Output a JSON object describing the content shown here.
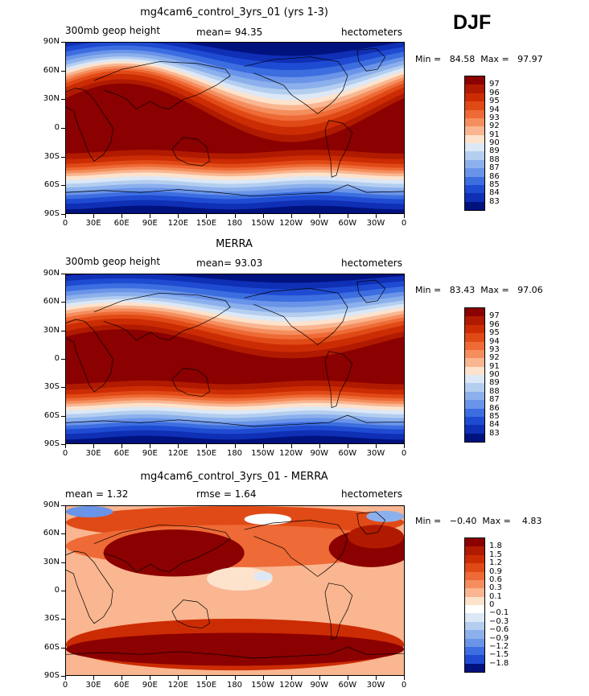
{
  "season": "DJF",
  "panels": [
    {
      "title": "mg4cam6_control_3yrs_01 (yrs 1-3)",
      "left_label": "300mb geop height",
      "center_label": "mean=   94.35",
      "right_label": "hectometers",
      "minmax": "Min =   84.58  Max =   97.97",
      "field": "model"
    },
    {
      "title": "MERRA",
      "left_label": "300mb geop height",
      "center_label": "mean=   93.03",
      "right_label": "hectometers",
      "minmax": "Min =   83.43  Max =   97.06",
      "field": "obs"
    },
    {
      "title": "mg4cam6_control_3yrs_01 - MERRA",
      "left_label": "mean =     1.32",
      "center_label": "rmse =     1.64",
      "right_label": "hectometers",
      "minmax": "Min =   −0.40  Max =    4.83",
      "field": "diff"
    }
  ],
  "lat_labels": [
    "90N",
    "60N",
    "30N",
    "0",
    "30S",
    "60S",
    "90S"
  ],
  "lon_labels": [
    "0",
    "30E",
    "60E",
    "90E",
    "120E",
    "150E",
    "180",
    "150W",
    "120W",
    "90W",
    "60W",
    "30W",
    "0"
  ],
  "colorbar_abs": {
    "labels": [
      "97",
      "96",
      "95",
      "94",
      "93",
      "92",
      "91",
      "90",
      "89",
      "88",
      "87",
      "86",
      "85",
      "84",
      "83"
    ],
    "colors": [
      "#8b0000",
      "#b01a00",
      "#cc2c04",
      "#e04a16",
      "#ee6a36",
      "#f58e5e",
      "#f9b690",
      "#fde2cc",
      "#dce8f6",
      "#b4cef0",
      "#8cb0ec",
      "#6a94e8",
      "#3d6ee0",
      "#1f4bd2",
      "#0f2fb5",
      "#00127e"
    ]
  },
  "colorbar_diff": {
    "labels": [
      "1.8",
      "1.5",
      "1.2",
      "0.9",
      "0.6",
      "0.3",
      "0.1",
      "0",
      "−0.1",
      "−0.3",
      "−0.6",
      "−0.9",
      "−1.2",
      "−1.5",
      "−1.8"
    ],
    "colors": [
      "#8b0000",
      "#b01a00",
      "#cc2c04",
      "#e04a16",
      "#ee6a36",
      "#f58e5e",
      "#f9b690",
      "#fde2cc",
      "#ffffff",
      "#dce8f6",
      "#b4cef0",
      "#8cb0ec",
      "#6a94e8",
      "#3d6ee0",
      "#1f4bd2",
      "#00127e"
    ]
  }
}
